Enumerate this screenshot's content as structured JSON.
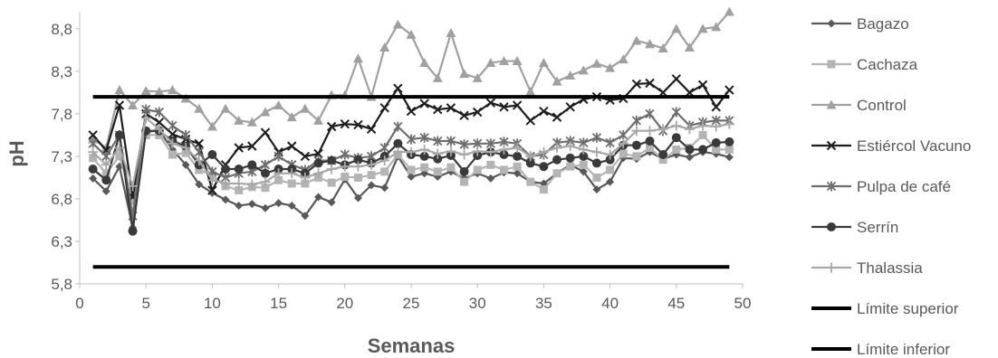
{
  "chart_data": {
    "type": "line",
    "title": "",
    "xlabel": "Semanas",
    "ylabel": "pH",
    "xlim": [
      0,
      50
    ],
    "ylim": [
      5.8,
      9.0
    ],
    "xticks": [
      "0",
      "5",
      "10",
      "15",
      "20",
      "25",
      "30",
      "35",
      "40",
      "45",
      "50"
    ],
    "yticks": [
      "5,8",
      "6,3",
      "6,8",
      "7,3",
      "7,8",
      "8,3",
      "8,8"
    ],
    "ytick_values": [
      5.8,
      6.3,
      6.8,
      7.3,
      7.8,
      8.3,
      8.8
    ],
    "grid": false,
    "legend_position": "right",
    "x": [
      1,
      2,
      3,
      4,
      5,
      6,
      7,
      8,
      9,
      10,
      11,
      12,
      13,
      14,
      15,
      16,
      17,
      18,
      19,
      20,
      21,
      22,
      23,
      24,
      25,
      26,
      27,
      28,
      29,
      30,
      31,
      32,
      33,
      34,
      35,
      36,
      37,
      38,
      39,
      40,
      41,
      42,
      43,
      44,
      45,
      46,
      47,
      48,
      49
    ],
    "series": [
      {
        "name": "Bagazo",
        "color": "#595959",
        "marker": "diamond",
        "values": [
          7.04,
          6.89,
          7.18,
          6.46,
          7.59,
          7.6,
          7.38,
          7.2,
          6.97,
          6.87,
          6.79,
          6.72,
          6.74,
          6.69,
          6.75,
          6.72,
          6.6,
          6.82,
          6.76,
          7.03,
          6.81,
          6.96,
          6.93,
          7.3,
          7.06,
          7.1,
          7.06,
          7.12,
          7.04,
          7.1,
          7.04,
          7.11,
          7.1,
          7.0,
          6.98,
          7.1,
          7.2,
          7.12,
          6.91,
          7.0,
          7.28,
          7.27,
          7.35,
          7.27,
          7.32,
          7.29,
          7.35,
          7.33,
          7.29
        ]
      },
      {
        "name": "Cachaza",
        "color": "#b4b4b4",
        "marker": "square",
        "values": [
          7.28,
          7.1,
          7.3,
          6.78,
          7.55,
          7.55,
          7.32,
          7.34,
          7.14,
          7.08,
          6.95,
          6.9,
          6.94,
          6.93,
          7.02,
          6.98,
          6.98,
          7.05,
          6.99,
          7.06,
          7.05,
          7.08,
          7.12,
          7.32,
          7.14,
          7.17,
          7.12,
          7.17,
          7.0,
          7.14,
          7.2,
          7.14,
          7.18,
          7.0,
          6.91,
          7.1,
          7.18,
          7.2,
          7.05,
          7.14,
          7.33,
          7.3,
          7.4,
          7.26,
          7.38,
          7.4,
          7.55,
          7.38,
          7.38
        ]
      },
      {
        "name": "Control",
        "color": "#a0a0a0",
        "marker": "triangle",
        "values": [
          7.5,
          7.4,
          8.08,
          7.9,
          8.07,
          8.06,
          8.08,
          7.98,
          7.86,
          7.65,
          7.86,
          7.72,
          7.7,
          7.82,
          7.9,
          7.76,
          7.86,
          7.72,
          8.02,
          8.02,
          8.45,
          8.0,
          8.58,
          8.85,
          8.73,
          8.4,
          8.22,
          8.75,
          8.27,
          8.22,
          8.4,
          8.42,
          8.42,
          8.06,
          8.4,
          8.18,
          8.25,
          8.31,
          8.39,
          8.34,
          8.44,
          8.66,
          8.62,
          8.57,
          8.8,
          8.58,
          8.8,
          8.82,
          9.0
        ]
      },
      {
        "name": "Estiércol Vacuno",
        "color": "#1e1e1e",
        "marker": "x",
        "values": [
          7.55,
          7.37,
          7.9,
          6.82,
          7.8,
          7.7,
          7.56,
          7.5,
          7.45,
          6.9,
          7.2,
          7.4,
          7.42,
          7.58,
          7.35,
          7.42,
          7.3,
          7.33,
          7.65,
          7.68,
          7.67,
          7.62,
          7.87,
          8.1,
          7.83,
          7.92,
          7.85,
          7.87,
          7.78,
          7.82,
          7.93,
          7.88,
          7.9,
          7.72,
          7.83,
          7.76,
          7.88,
          7.97,
          8.0,
          7.96,
          7.98,
          8.15,
          8.16,
          8.05,
          8.21,
          8.05,
          8.14,
          7.88,
          8.08
        ]
      },
      {
        "name": "Pulpa de café",
        "color": "#6e6e6e",
        "marker": "asterisk",
        "values": [
          7.45,
          7.3,
          7.55,
          6.6,
          7.85,
          7.82,
          7.66,
          7.55,
          7.35,
          7.12,
          7.05,
          7.1,
          7.12,
          7.2,
          7.3,
          7.2,
          7.14,
          7.25,
          7.25,
          7.32,
          7.28,
          7.3,
          7.4,
          7.65,
          7.5,
          7.52,
          7.48,
          7.48,
          7.44,
          7.45,
          7.45,
          7.47,
          7.45,
          7.3,
          7.32,
          7.46,
          7.48,
          7.46,
          7.52,
          7.46,
          7.55,
          7.72,
          7.8,
          7.6,
          7.82,
          7.66,
          7.7,
          7.72,
          7.72
        ]
      },
      {
        "name": "Serrín",
        "color": "#3a3a3a",
        "marker": "circle",
        "values": [
          7.15,
          7.02,
          7.55,
          6.42,
          7.6,
          7.6,
          7.48,
          7.42,
          7.2,
          7.32,
          7.15,
          7.15,
          7.2,
          7.1,
          7.15,
          7.15,
          7.1,
          7.22,
          7.25,
          7.2,
          7.26,
          7.22,
          7.3,
          7.45,
          7.32,
          7.3,
          7.27,
          7.31,
          7.12,
          7.31,
          7.35,
          7.32,
          7.3,
          7.22,
          7.18,
          7.26,
          7.28,
          7.3,
          7.22,
          7.26,
          7.43,
          7.43,
          7.48,
          7.32,
          7.52,
          7.38,
          7.38,
          7.46,
          7.47
        ]
      },
      {
        "name": "Thalassia",
        "color": "#a8a8a8",
        "marker": "plus",
        "values": [
          7.35,
          7.2,
          7.4,
          6.95,
          7.75,
          7.62,
          7.45,
          7.4,
          7.25,
          7.02,
          6.98,
          6.98,
          6.97,
          7.0,
          7.1,
          7.1,
          7.05,
          7.1,
          7.15,
          7.18,
          7.18,
          7.2,
          7.25,
          7.35,
          7.35,
          7.38,
          7.33,
          7.36,
          7.32,
          7.36,
          7.35,
          7.38,
          7.4,
          7.3,
          7.35,
          7.4,
          7.42,
          7.38,
          7.35,
          7.32,
          7.45,
          7.6,
          7.6,
          7.62,
          7.66,
          7.62,
          7.66,
          7.65,
          7.68
        ]
      },
      {
        "name": "Límite superior",
        "color": "#000000",
        "marker": "none",
        "constant": 8.0,
        "x_from": 1,
        "x_to": 49
      },
      {
        "name": "Límite inferior",
        "color": "#000000",
        "marker": "none",
        "constant": 6.0,
        "x_from": 1,
        "x_to": 49
      }
    ]
  }
}
